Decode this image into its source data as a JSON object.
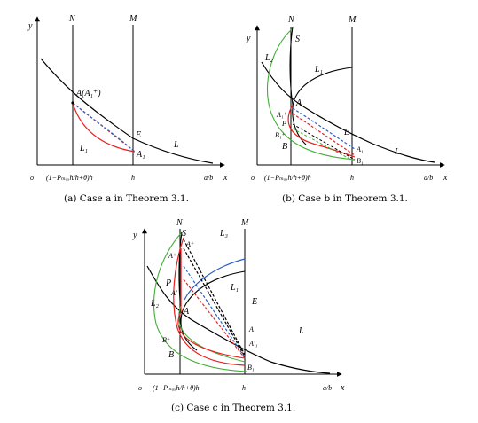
{
  "captions": {
    "a": "(a) Case a in Theorem 3.1.",
    "b": "(b) Case b in Theorem 3.1.",
    "c": "(c) Case c in Theorem 3.1."
  },
  "axis": {
    "y": "y",
    "x": "x",
    "origin": "o",
    "n_tick": "(1−Pₘₐₓh/h+θ)h",
    "h_tick": "h",
    "ab": "a/b"
  },
  "lines": {
    "N": "N",
    "M": "M"
  },
  "panel_a": {
    "A": "A(A₁⁺)",
    "E": "E",
    "A1": "A₁",
    "L1": "L₁",
    "L": "L"
  },
  "panel_b": {
    "S": "S",
    "L2": "L₂",
    "L1": "L₁",
    "A": "A",
    "A1p": "A₁⁺",
    "P": "P",
    "B1p": "B₁⁺",
    "B": "B",
    "E": "E",
    "A1": "A₁",
    "B1": "B₁",
    "L": "L"
  },
  "panel_c": {
    "S": "S",
    "Ap": "A⁺",
    "L3": "L₃",
    "App": "A⁺⁺",
    "P": "P",
    "A2": "A'",
    "L2": "L₂",
    "L1": "L₁",
    "E": "E",
    "A": "A",
    "A1": "A₁",
    "A1p": "A'₁",
    "L": "L",
    "Bp": "B⁺",
    "B": "B",
    "B1": "B₁"
  },
  "colors": {
    "red": "#e8201e",
    "blue": "#2b5fc7",
    "green": "#3fae35",
    "black": "#000000"
  }
}
